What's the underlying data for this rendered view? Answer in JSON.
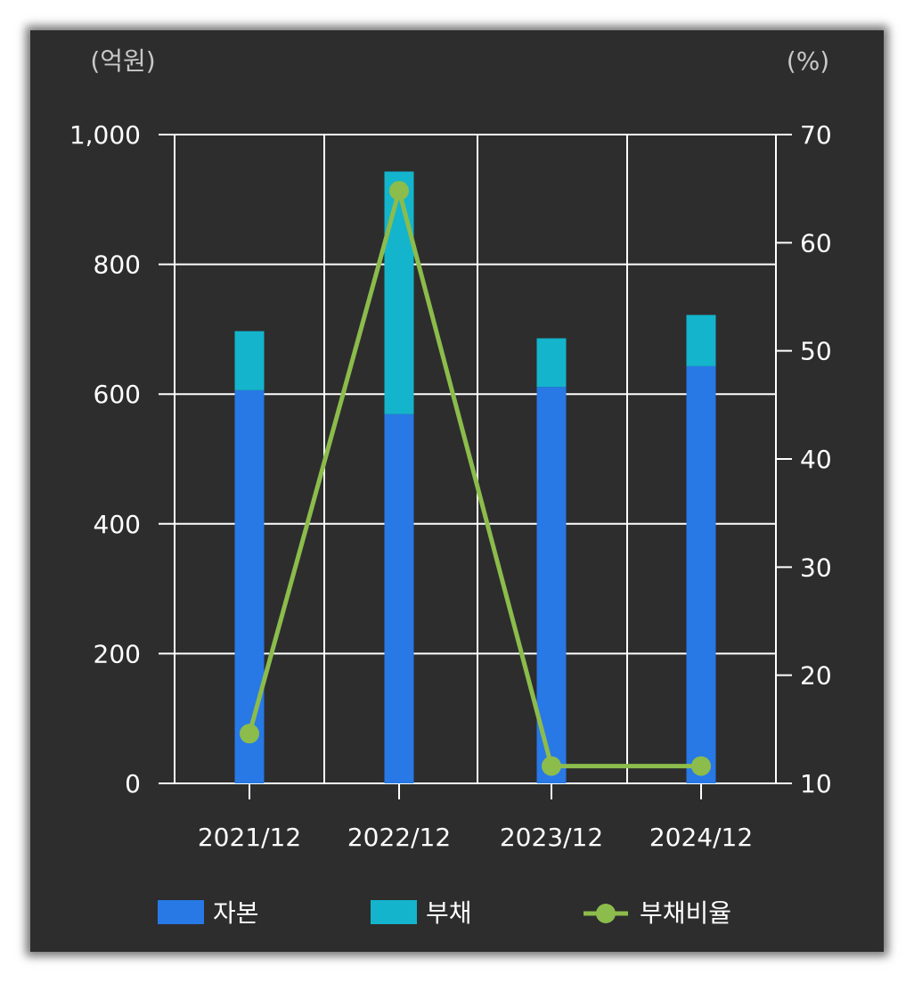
{
  "chart_data": {
    "type": "bar",
    "stacked": true,
    "y_left_unit": "(억원)",
    "y_right_unit": "(%)",
    "categories": [
      "2021/12",
      "2022/12",
      "2023/12",
      "2024/12"
    ],
    "y_left_ticks": [
      "0",
      "200",
      "400",
      "600",
      "800",
      "1,000"
    ],
    "y_right_ticks": [
      "10",
      "20",
      "30",
      "40",
      "50",
      "60",
      "70"
    ],
    "ylim_left": [
      0,
      1000
    ],
    "ylim_right": [
      10,
      70
    ],
    "grid": true,
    "legend_position": "bottom",
    "series": [
      {
        "name": "자본",
        "type": "bar",
        "axis": "left",
        "color": "#2878e6",
        "values": [
          606,
          569,
          611,
          643
        ]
      },
      {
        "name": "부채",
        "type": "bar",
        "axis": "left",
        "color": "#14b4cc",
        "values": [
          91,
          374,
          75,
          79
        ]
      },
      {
        "name": "부채비율",
        "type": "line",
        "axis": "right",
        "color": "#8cbc4c",
        "values": [
          14.6,
          64.8,
          11.6,
          11.6
        ]
      }
    ]
  }
}
